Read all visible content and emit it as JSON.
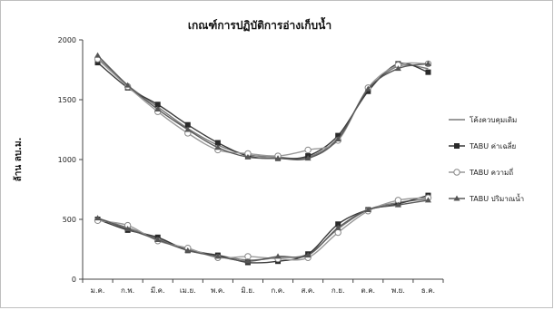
{
  "chart_data": {
    "type": "line",
    "title": "เกณฑ์การปฏิบัติการอ่างเก็บน้ำ",
    "ylabel": "ล้าน ลบ.ม.",
    "xlabel": "",
    "categories": [
      "ม.ค.",
      "ก.พ.",
      "มี.ค.",
      "เม.ย.",
      "พ.ค.",
      "มิ.ย.",
      "ก.ค.",
      "ส.ค.",
      "ก.ย.",
      "ต.ค.",
      "พ.ย.",
      "ธ.ค."
    ],
    "y_ticks": [
      "0",
      "500",
      "1000",
      "1500",
      "2000"
    ],
    "ylim": [
      0,
      2000
    ],
    "grid": false,
    "legend_position": "right",
    "series": [
      {
        "name": "โค้งควบคุมเดิม",
        "marker": "none",
        "color": "#7a7a7a",
        "upper": [
          1850,
          1620,
          1440,
          1260,
          1120,
          1040,
          1020,
          1020,
          1180,
          1580,
          1780,
          1760
        ],
        "lower": [
          510,
          430,
          340,
          250,
          200,
          160,
          180,
          210,
          420,
          580,
          640,
          670
        ]
      },
      {
        "name": "TABU ค่าเฉลี่ย",
        "marker": "square",
        "color": "#3a3a3a",
        "upper": [
          1810,
          1600,
          1460,
          1290,
          1140,
          1030,
          1010,
          1030,
          1200,
          1570,
          1800,
          1730
        ],
        "lower": [
          500,
          410,
          350,
          240,
          200,
          140,
          150,
          210,
          460,
          580,
          630,
          700
        ]
      },
      {
        "name": "TABU ความถี่",
        "marker": "circle",
        "color": "#9a9a9a",
        "upper": [
          1840,
          1610,
          1400,
          1220,
          1080,
          1050,
          1030,
          1080,
          1160,
          1600,
          1790,
          1800
        ],
        "lower": [
          490,
          450,
          320,
          260,
          180,
          190,
          170,
          180,
          390,
          570,
          660,
          680
        ]
      },
      {
        "name": "TABU ปริมาณน้ำ",
        "marker": "triangle",
        "color": "#5a5a5a",
        "upper": [
          1870,
          1620,
          1420,
          1250,
          1100,
          1020,
          1010,
          1010,
          1170,
          1590,
          1760,
          1800
        ],
        "lower": [
          510,
          420,
          330,
          240,
          190,
          150,
          190,
          200,
          430,
          580,
          620,
          660
        ]
      }
    ]
  }
}
